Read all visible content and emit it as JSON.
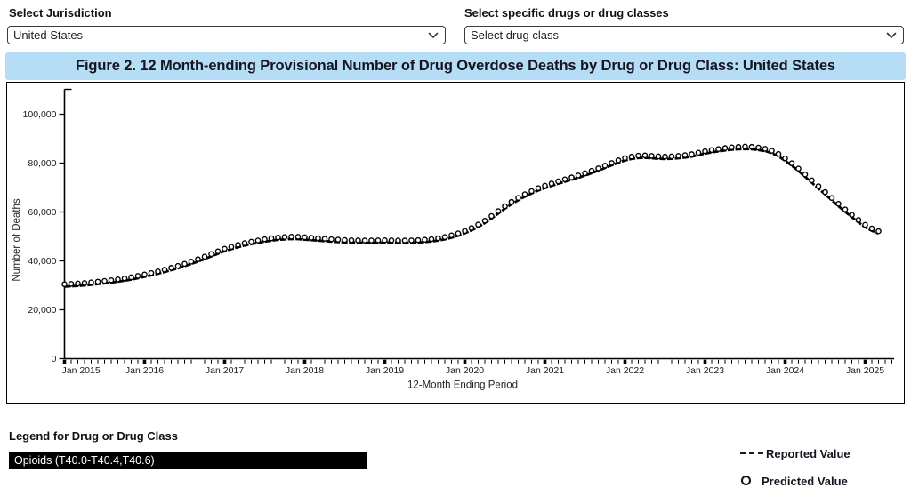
{
  "controls": {
    "jurisdiction": {
      "label": "Select Jurisdiction",
      "value": "United States"
    },
    "drug_select": {
      "label": "Select specific drugs or drug classes",
      "value": "Select drug class"
    }
  },
  "figure_title": "Figure 2. 12 Month-ending Provisional Number of Drug Overdose Deaths by Drug or Drug Class: United States",
  "drug_legend": {
    "heading": "Legend for Drug or Drug Class",
    "items": [
      {
        "label": "Opioids (T40.0-T40.4,T40.6)",
        "color": "#000000"
      }
    ]
  },
  "series_legend": {
    "reported_label": "Reported Value",
    "predicted_label": "Predicted Value"
  },
  "colors": {
    "title_bar_bg": "#b5ddf6",
    "line": "#000000",
    "accent_text": "#15151f"
  },
  "chart_data": {
    "type": "line",
    "xlabel": "12-Month Ending Period",
    "ylabel": "Number of Deaths",
    "x_start": "Jan 2015",
    "x_interval": "monthly",
    "x_tick_labels": [
      "Jan 2015",
      "Jan 2016",
      "Jan 2017",
      "Jan 2018",
      "Jan 2019",
      "Jan 2020",
      "Jan 2021",
      "Jan 2022",
      "Jan 2023",
      "Jan 2024",
      "Jan 2025"
    ],
    "y_tick_labels": [
      "0",
      "20,000",
      "40,000",
      "60,000",
      "80,000",
      "100,000"
    ],
    "y_tick_values": [
      0,
      20000,
      40000,
      60000,
      80000,
      100000
    ],
    "ylim": [
      0,
      110000
    ],
    "grid": false,
    "legend_position": "bottom-right",
    "series": [
      {
        "name": "Reported Value",
        "style": "dashed-line"
      },
      {
        "name": "Predicted Value",
        "style": "open-circle"
      }
    ],
    "values": [
      29500,
      29650,
      29800,
      30000,
      30250,
      30550,
      30850,
      31150,
      31500,
      31900,
      32350,
      32900,
      33500,
      34100,
      34750,
      35450,
      36200,
      37000,
      37850,
      38750,
      39700,
      40750,
      41850,
      42950,
      44000,
      44800,
      45600,
      46300,
      46900,
      47400,
      47900,
      48300,
      48600,
      48800,
      48950,
      48900,
      48700,
      48500,
      48300,
      48100,
      47900,
      47750,
      47600,
      47500,
      47450,
      47400,
      47400,
      47450,
      47500,
      47450,
      47400,
      47400,
      47450,
      47550,
      47700,
      47950,
      48300,
      48800,
      49500,
      50300,
      51300,
      52500,
      53900,
      55500,
      57400,
      59400,
      61400,
      63200,
      64800,
      66300,
      67600,
      68800,
      69800,
      70700,
      71600,
      72400,
      73200,
      74000,
      74900,
      75900,
      76900,
      78000,
      79100,
      80200,
      81100,
      81700,
      82100,
      82200,
      82000,
      81800,
      81700,
      81800,
      82000,
      82300,
      82700,
      83300,
      83900,
      84400,
      84800,
      85200,
      85500,
      85700,
      85800,
      85700,
      85400,
      84900,
      84100,
      82800,
      81000,
      79000,
      76800,
      74400,
      72000,
      69600,
      67200,
      64800,
      62400,
      60100,
      57900,
      55800,
      53800,
      52300,
      51200
    ]
  }
}
